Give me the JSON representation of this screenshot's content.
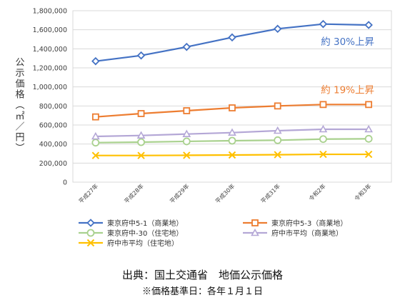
{
  "chart_data": {
    "type": "line",
    "ylabel": "公示価格（㎡／円）",
    "ylim": [
      0,
      1800000
    ],
    "yticks": [
      "0",
      "200,000",
      "400,000",
      "600,000",
      "800,000",
      "1,000,000",
      "1,200,000",
      "1,400,000",
      "1,600,000",
      "1,800,000"
    ],
    "categories": [
      "平成27年",
      "平成28年",
      "平成29年",
      "平成30年",
      "平成31年",
      "令和2年",
      "令和3年"
    ],
    "grid": true,
    "legend_position": "bottom",
    "series": [
      {
        "name": "東京府中5-1（商業地）",
        "color": "#4472c4",
        "marker": "diamond",
        "values": [
          1270000,
          1330000,
          1420000,
          1520000,
          1610000,
          1660000,
          1650000
        ]
      },
      {
        "name": "東京府中5-3（商業地）",
        "color": "#ed7d31",
        "marker": "square",
        "values": [
          685000,
          720000,
          750000,
          780000,
          800000,
          815000,
          815000
        ]
      },
      {
        "name": "東京府中-30（住宅地）",
        "color": "#a9d18e",
        "marker": "circle",
        "values": [
          415000,
          420000,
          428000,
          435000,
          440000,
          452000,
          455000
        ]
      },
      {
        "name": "府中市平均（商業地）",
        "color": "#b4a7d6",
        "marker": "triangle",
        "values": [
          480000,
          490000,
          505000,
          520000,
          540000,
          555000,
          555000
        ]
      },
      {
        "name": "府中市平均（住宅地）",
        "color": "#ffc000",
        "marker": "x",
        "values": [
          280000,
          280000,
          282000,
          285000,
          288000,
          292000,
          292000
        ]
      }
    ],
    "annotations": [
      {
        "text": "約 30%上昇",
        "color": "#4472c4",
        "series": 0
      },
      {
        "text": "約 19%上昇",
        "color": "#ed7d31",
        "series": 1
      }
    ]
  },
  "source": "出典：国土交通省　地価公示価格",
  "basis": "※価格基準日：各年１月１日"
}
